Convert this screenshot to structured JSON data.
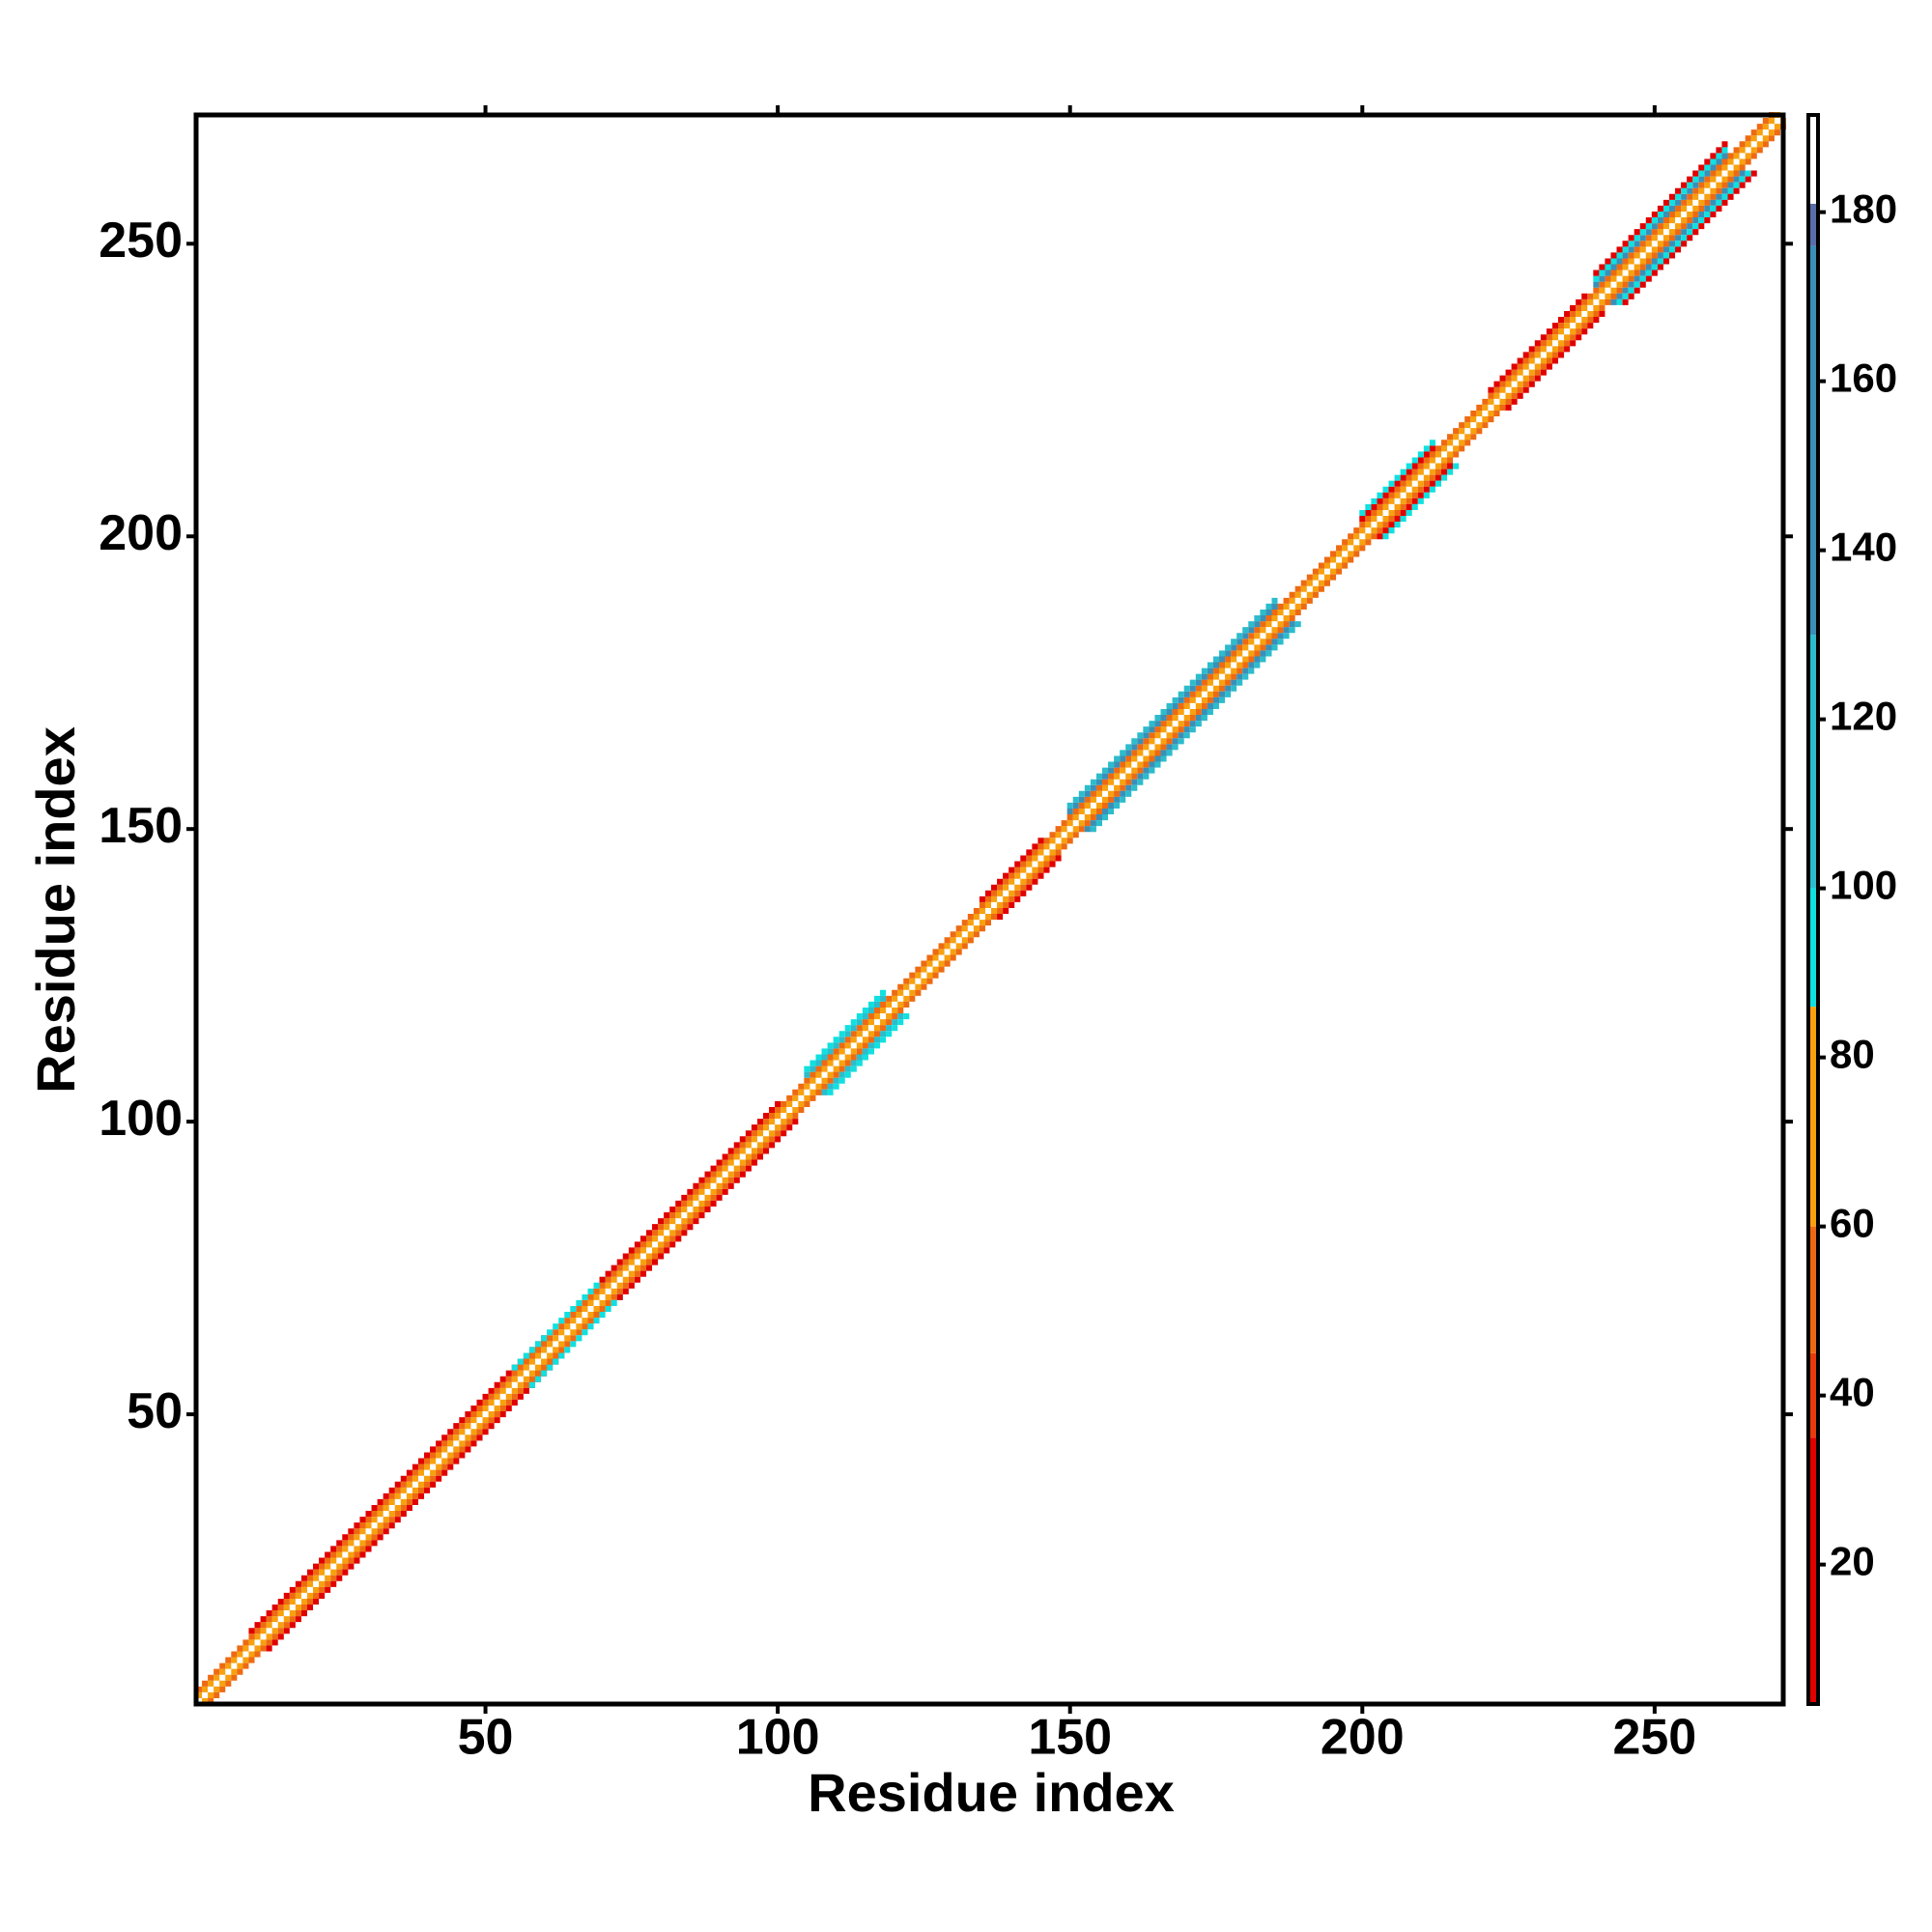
{
  "chart_data": {
    "type": "heatmap",
    "x_label": "Residue index",
    "y_label": "Residue index",
    "xlim": [
      0.5,
      272
    ],
    "ylim": [
      0.5,
      272
    ],
    "xticks": [
      50,
      100,
      150,
      200,
      250
    ],
    "yticks": [
      50,
      100,
      150,
      200,
      250
    ],
    "clim": [
      3.5,
      191.5
    ],
    "cticks": [
      20,
      40,
      60,
      80,
      100,
      120,
      140,
      160,
      180
    ],
    "colorscale": [
      {
        "from": 3.5,
        "to": 35,
        "color": "#e00000"
      },
      {
        "from": 35,
        "to": 45,
        "color": "#e83a0a"
      },
      {
        "from": 45,
        "to": 60,
        "color": "#ee6a12"
      },
      {
        "from": 60,
        "to": 86,
        "color": "#f7a10e"
      },
      {
        "from": 86,
        "to": 100,
        "color": "#10e0e0"
      },
      {
        "from": 100,
        "to": 130,
        "color": "#2cbccc"
      },
      {
        "from": 130,
        "to": 176,
        "color": "#3a8fb8"
      },
      {
        "from": 176,
        "to": 181,
        "color": "#5a6fa8"
      },
      {
        "from": 181,
        "to": 191.5,
        "color": "#ffffff"
      }
    ],
    "bands": [
      {
        "from": 1,
        "to": 271,
        "offset": 1,
        "value": 72
      },
      {
        "from": 1,
        "to": 270,
        "offset": 2,
        "value": 55
      },
      {
        "from": 10,
        "to": 60,
        "offset": 3,
        "value": 25
      },
      {
        "from": 55,
        "to": 70,
        "offset": 3,
        "value": 95
      },
      {
        "from": 70,
        "to": 100,
        "offset": 3,
        "value": 30
      },
      {
        "from": 105,
        "to": 118,
        "offset": 3,
        "value": 110
      },
      {
        "from": 105,
        "to": 118,
        "offset": 4,
        "value": 95
      },
      {
        "from": 135,
        "to": 145,
        "offset": 3,
        "value": 20
      },
      {
        "from": 150,
        "to": 185,
        "offset": 3,
        "value": 140
      },
      {
        "from": 150,
        "to": 185,
        "offset": 4,
        "value": 120
      },
      {
        "from": 200,
        "to": 212,
        "offset": 3,
        "value": 25
      },
      {
        "from": 200,
        "to": 212,
        "offset": 4,
        "value": 95
      },
      {
        "from": 222,
        "to": 238,
        "offset": 3,
        "value": 20
      },
      {
        "from": 240,
        "to": 262,
        "offset": 3,
        "value": 150
      },
      {
        "from": 240,
        "to": 262,
        "offset": 4,
        "value": 95
      },
      {
        "from": 240,
        "to": 262,
        "offset": 5,
        "value": 30
      }
    ]
  }
}
